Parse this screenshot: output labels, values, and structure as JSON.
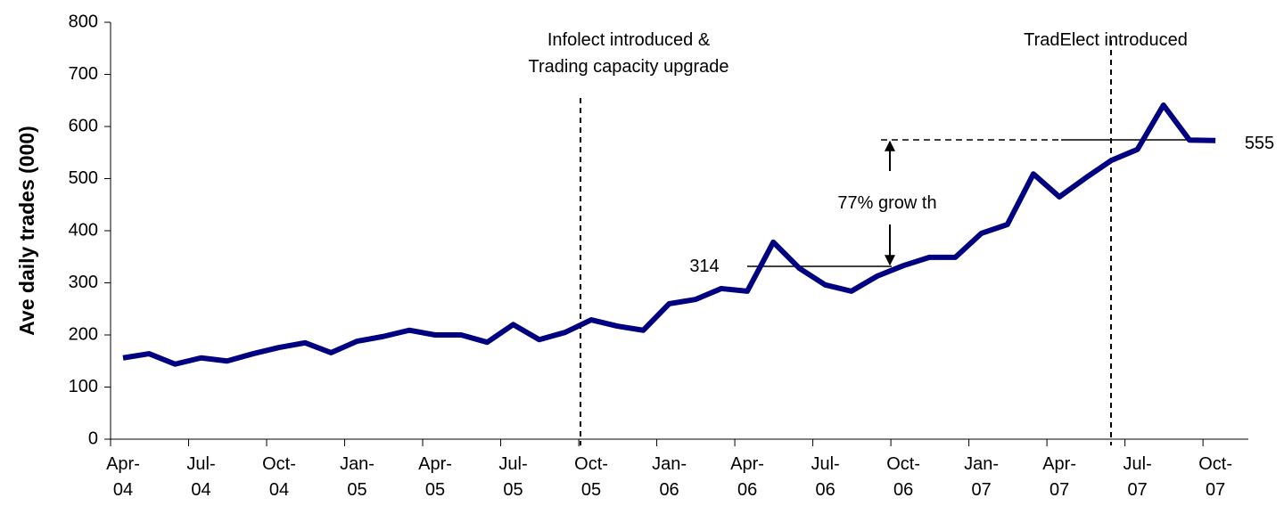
{
  "chart_data": {
    "type": "line",
    "ylabel": "Ave daily trades (000)",
    "categories": [
      "Apr-\n04",
      null,
      null,
      "Jul-\n04",
      null,
      null,
      "Oct-\n04",
      null,
      null,
      "Jan-\n05",
      null,
      null,
      "Apr-\n05",
      null,
      null,
      "Jul-\n05",
      null,
      null,
      "Oct-\n05",
      null,
      null,
      "Jan-\n06",
      null,
      null,
      "Apr-\n06",
      null,
      null,
      "Jul-\n06",
      null,
      null,
      "Oct-\n06",
      null,
      null,
      "Jan-\n07",
      null,
      null,
      "Apr-\n07",
      null,
      null,
      "Jul-\n07",
      null,
      null,
      "Oct-\n07"
    ],
    "series": [
      {
        "color": "#000080",
        "values": [
          156,
          164,
          144,
          156,
          150,
          164,
          176,
          185,
          166,
          188,
          197,
          209,
          200,
          200,
          186,
          220,
          191,
          205,
          229,
          217,
          209,
          260,
          268,
          289,
          284,
          378,
          328,
          296,
          284,
          313,
          333,
          349,
          349,
          395,
          412,
          509,
          465,
          501,
          535,
          556,
          641,
          574,
          573
        ]
      }
    ],
    "ylim": [
      0,
      800
    ],
    "yticks": [
      0,
      100,
      200,
      300,
      400,
      500,
      600,
      700,
      800
    ],
    "annotations": [
      "Infolect introduced &\nTrading capacity upgrade",
      "TradElect introduced",
      "77% grow th",
      "314",
      "555"
    ]
  }
}
